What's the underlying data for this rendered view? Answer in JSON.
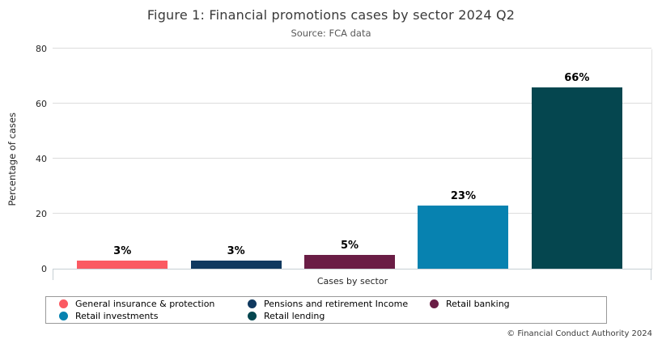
{
  "header": {
    "title": "Figure 1: Financial promotions cases by sector 2024 Q2",
    "subtitle": "Source: FCA data"
  },
  "chart_data": {
    "type": "bar",
    "title": "Figure 1: Financial promotions cases by sector 2024 Q2",
    "subtitle": "Source: FCA data",
    "categories": [
      "General insurance & protection",
      "Pensions and retirement Income",
      "Retail banking",
      "Retail investments",
      "Retail lending"
    ],
    "values": [
      3,
      3,
      5,
      23,
      66
    ],
    "value_labels": [
      "3%",
      "3%",
      "5%",
      "23%",
      "66%"
    ],
    "colors": [
      "#fb5a62",
      "#10395f",
      "#6a1d45",
      "#0782b0",
      "#05464f"
    ],
    "xlabel": "Cases by sector",
    "ylabel": "Percentage of cases",
    "ylim": [
      0,
      80
    ],
    "yticks": [
      0,
      20,
      40,
      60,
      80
    ],
    "grid": true,
    "gridline_color": "#dcdcdc",
    "axis_color": "#c6cfd4",
    "legend_position": "bottom"
  },
  "legend": {
    "items": [
      {
        "label": "General insurance & protection",
        "color": "#fb5a62"
      },
      {
        "label": "Pensions and retirement Income",
        "color": "#10395f"
      },
      {
        "label": "Retail banking",
        "color": "#6a1d45"
      },
      {
        "label": "Retail investments",
        "color": "#0782b0"
      },
      {
        "label": "Retail lending",
        "color": "#05464f"
      }
    ]
  },
  "footer": {
    "copyright": "© Financial Conduct Authority 2024"
  }
}
